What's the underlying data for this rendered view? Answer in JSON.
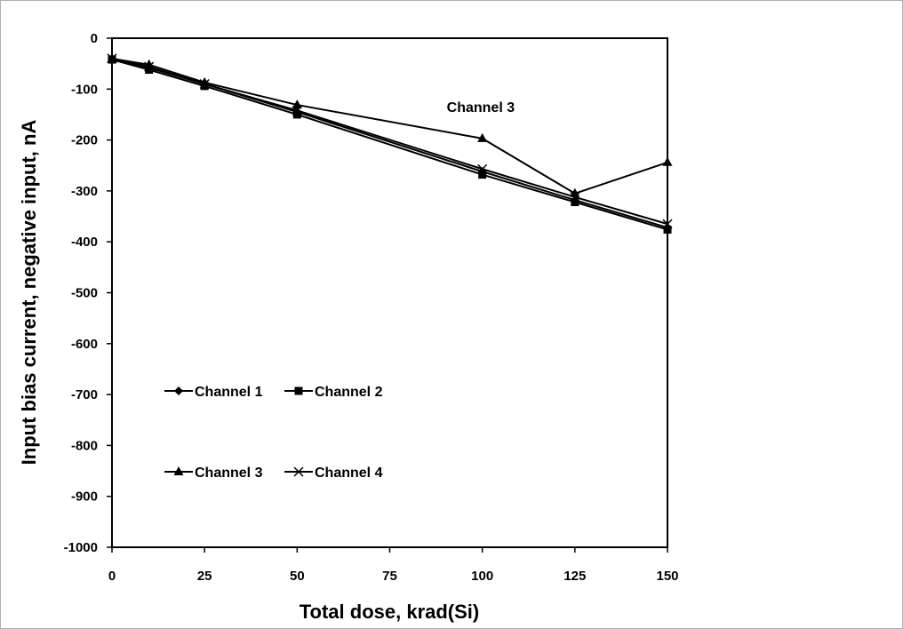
{
  "chart_data": {
    "type": "line",
    "title": "",
    "xlabel": "Total dose, krad(Si)",
    "ylabel": "Input bias current, negative input, nA",
    "xlim": [
      0,
      150
    ],
    "ylim": [
      -1000,
      0
    ],
    "xticks": [
      0,
      25,
      50,
      75,
      100,
      125,
      150
    ],
    "yticks": [
      0,
      -100,
      -200,
      -300,
      -400,
      -500,
      -600,
      -700,
      -800,
      -900,
      -1000
    ],
    "grid": false,
    "legend_position": "lower-left",
    "x": [
      0,
      10,
      25,
      50,
      100,
      125,
      150
    ],
    "series": [
      {
        "name": "Channel 1",
        "marker": "diamond",
        "values": [
          -40,
          -58,
          -90,
          -145,
          -262,
          -318,
          -372
        ]
      },
      {
        "name": "Channel 2",
        "marker": "square",
        "values": [
          -42,
          -62,
          -94,
          -150,
          -268,
          -322,
          -376
        ]
      },
      {
        "name": "Channel 3",
        "marker": "triangle",
        "values": [
          -40,
          -52,
          -87,
          -131,
          -197,
          -305,
          -244
        ]
      },
      {
        "name": "Channel 4",
        "marker": "cross",
        "values": [
          -40,
          -56,
          -90,
          -142,
          -257,
          -312,
          -365
        ]
      }
    ],
    "annotations": [
      {
        "text": "Channel 3",
        "x": 100,
        "y": -145
      }
    ]
  }
}
